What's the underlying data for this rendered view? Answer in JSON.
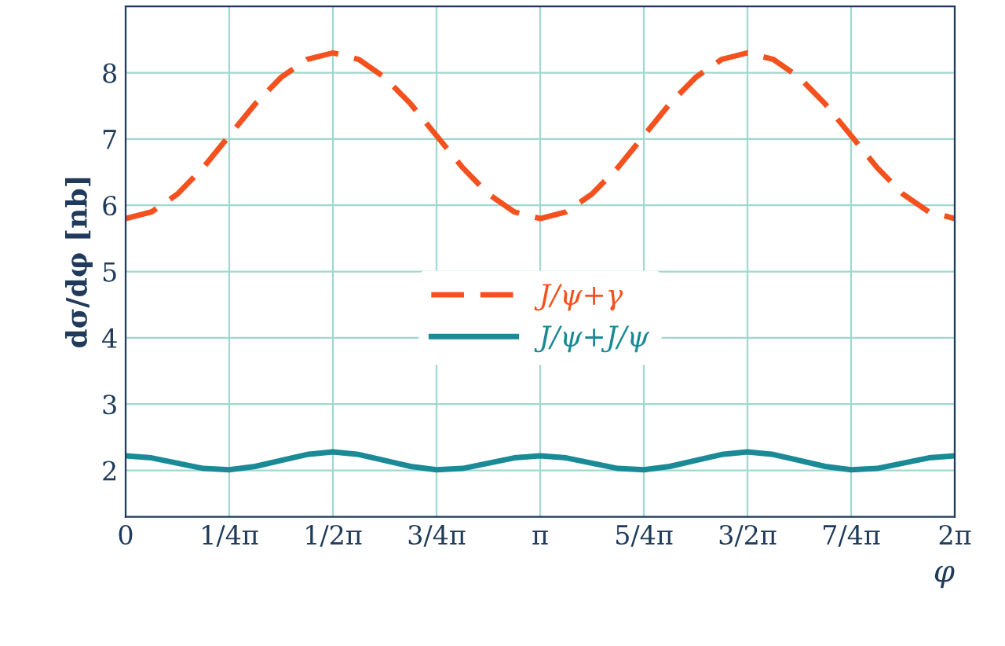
{
  "chart_data": {
    "type": "line",
    "xlabel": "φ",
    "ylabel": "dσ/dφ [nb]",
    "xlim": [
      0,
      6.2832
    ],
    "ylim": [
      1.3,
      9.0
    ],
    "xticks": [
      0,
      {
        "value": 0.7854,
        "label": "1/4π"
      },
      {
        "value": 1.5708,
        "label": "1/2π"
      },
      {
        "value": 2.3562,
        "label": "3/4π"
      },
      {
        "value": 3.1416,
        "label": "π"
      },
      {
        "value": 3.927,
        "label": "5/4π"
      },
      {
        "value": 4.7124,
        "label": "3/2π"
      },
      {
        "value": 5.4978,
        "label": "7/4π"
      },
      {
        "value": 6.2832,
        "label": "2π"
      }
    ],
    "yticks": [
      2,
      3,
      4,
      5,
      6,
      7,
      8
    ],
    "grid": true,
    "legend": "center",
    "marker": "none",
    "series": [
      {
        "name": "J/ψ+γ",
        "color": "#f4511e",
        "line_style": "dashed",
        "x": [
          0,
          0.196,
          0.393,
          0.589,
          0.785,
          0.982,
          1.178,
          1.374,
          1.571,
          1.767,
          1.963,
          2.16,
          2.356,
          2.553,
          2.749,
          2.945,
          3.142,
          3.338,
          3.534,
          3.731,
          3.927,
          4.123,
          4.32,
          4.516,
          4.712,
          4.909,
          5.105,
          5.301,
          5.498,
          5.694,
          5.89,
          6.087,
          6.283
        ],
        "values": [
          5.8,
          5.9,
          6.17,
          6.57,
          7.05,
          7.53,
          7.93,
          8.2,
          8.3,
          8.2,
          7.93,
          7.53,
          7.05,
          6.57,
          6.17,
          5.9,
          5.8,
          5.9,
          6.17,
          6.57,
          7.05,
          7.53,
          7.93,
          8.2,
          8.3,
          8.2,
          7.93,
          7.53,
          7.05,
          6.57,
          6.17,
          5.9,
          5.8
        ]
      },
      {
        "name": "J/ψ+J/ψ",
        "color": "#1a8a96",
        "line_style": "solid",
        "x": [
          0,
          0.196,
          0.393,
          0.589,
          0.785,
          0.982,
          1.178,
          1.374,
          1.571,
          1.767,
          1.963,
          2.16,
          2.356,
          2.553,
          2.749,
          2.945,
          3.142,
          3.338,
          3.534,
          3.731,
          3.927,
          4.123,
          4.32,
          4.516,
          4.712,
          4.909,
          5.105,
          5.301,
          5.498,
          5.694,
          5.89,
          6.087,
          6.283
        ],
        "values": [
          2.22,
          2.19,
          2.11,
          2.03,
          2.01,
          2.06,
          2.15,
          2.24,
          2.28,
          2.24,
          2.15,
          2.06,
          2.01,
          2.03,
          2.11,
          2.19,
          2.22,
          2.19,
          2.11,
          2.03,
          2.01,
          2.06,
          2.15,
          2.24,
          2.28,
          2.24,
          2.15,
          2.06,
          2.01,
          2.03,
          2.11,
          2.19,
          2.22
        ]
      }
    ]
  }
}
